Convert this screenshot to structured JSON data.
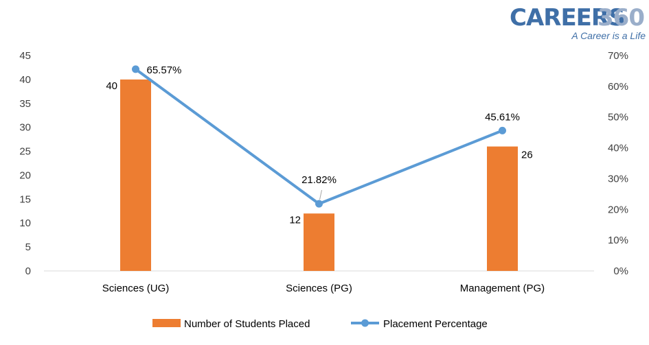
{
  "logo": {
    "name": "CAREERS",
    "number": "360",
    "tagline": "A Career is a Life",
    "color": "#3f6fa7",
    "number_color": "#9aaeca"
  },
  "chart_data": {
    "type": "bar+line",
    "categories": [
      "Sciences (UG)",
      "Sciences (PG)",
      "Management (PG)"
    ],
    "series": [
      {
        "name": "Number of Students Placed",
        "type": "bar",
        "axis": "left",
        "values": [
          40,
          12,
          26
        ],
        "labels": [
          "40",
          "12",
          "26"
        ],
        "color": "#ed7d31"
      },
      {
        "name": "Placement Percentage",
        "type": "line",
        "axis": "right",
        "values": [
          65.57,
          21.82,
          45.61
        ],
        "labels": [
          "65.57%",
          "21.82%",
          "45.61%"
        ],
        "color": "#5b9bd5"
      }
    ],
    "y_left": {
      "min": 0,
      "max": 45,
      "step": 5,
      "ticks": [
        "0",
        "5",
        "10",
        "15",
        "20",
        "25",
        "30",
        "35",
        "40",
        "45"
      ]
    },
    "y_right": {
      "min": 0,
      "max": 70,
      "step": 10,
      "ticks": [
        "0%",
        "10%",
        "20%",
        "30%",
        "40%",
        "50%",
        "60%",
        "70%"
      ]
    },
    "gridlines": false,
    "legend_position": "bottom"
  }
}
